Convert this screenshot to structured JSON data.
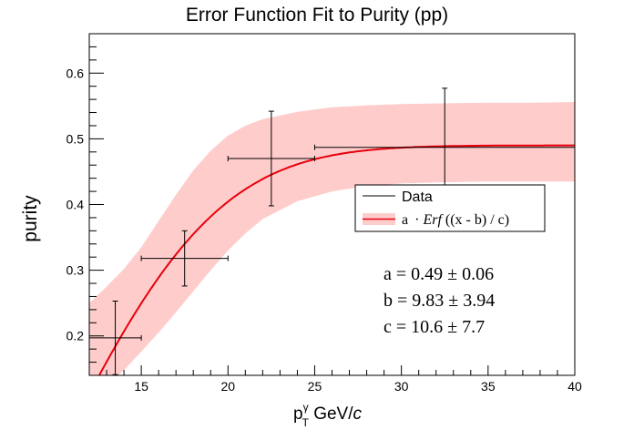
{
  "chart_data": {
    "type": "scatter",
    "title": "Error Function Fit to Purity (pp)",
    "xlabel_parts": {
      "p": "p",
      "sup": "γ",
      "sub": "T",
      "unit": " GeV/",
      "c": "c"
    },
    "ylabel": "purity",
    "xlim": [
      12,
      40
    ],
    "ylim": [
      0.14,
      0.66
    ],
    "x_ticks": [
      15,
      20,
      25,
      30,
      35,
      40
    ],
    "y_ticks": [
      0.2,
      0.3,
      0.4,
      0.5,
      0.6
    ],
    "x_minor_step": 1,
    "y_minor_step": 0.02,
    "series": [
      {
        "name": "Data",
        "points": [
          {
            "x": 13.5,
            "y": 0.197,
            "xerr": 1.5,
            "yerr": 0.056
          },
          {
            "x": 17.5,
            "y": 0.318,
            "xerr": 2.5,
            "yerr": 0.042
          },
          {
            "x": 22.5,
            "y": 0.47,
            "xerr": 2.5,
            "yerr": 0.072
          },
          {
            "x": 32.5,
            "y": 0.487,
            "xerr": 7.5,
            "yerr": 0.09
          }
        ],
        "color": "#000000"
      }
    ],
    "fit": {
      "legend_label_parts": {
        "a": "a ",
        "dot": "·",
        "erf": "Erf",
        "rest": " ((x - b) / c)"
      },
      "a": 0.49,
      "b": 9.83,
      "c": 10.6,
      "line_color": "#e8000b",
      "band_color": "#ffcccc",
      "band_upper": [
        [
          12.0,
          0.25
        ],
        [
          13.0,
          0.275
        ],
        [
          14.0,
          0.302
        ],
        [
          15.0,
          0.335
        ],
        [
          16.0,
          0.375
        ],
        [
          17.0,
          0.415
        ],
        [
          18.0,
          0.452
        ],
        [
          19.0,
          0.482
        ],
        [
          20.0,
          0.505
        ],
        [
          21.0,
          0.52
        ],
        [
          22.0,
          0.53
        ],
        [
          24.0,
          0.541
        ],
        [
          26.0,
          0.548
        ],
        [
          28.0,
          0.551
        ],
        [
          30.0,
          0.553
        ],
        [
          32.5,
          0.554
        ],
        [
          35.0,
          0.555
        ],
        [
          37.5,
          0.555
        ],
        [
          40.0,
          0.556
        ]
      ],
      "band_lower": [
        [
          12.0,
          0.1
        ],
        [
          13.0,
          0.124
        ],
        [
          14.0,
          0.148
        ],
        [
          15.0,
          0.176
        ],
        [
          16.0,
          0.205
        ],
        [
          17.0,
          0.236
        ],
        [
          18.0,
          0.268
        ],
        [
          19.0,
          0.3
        ],
        [
          20.0,
          0.33
        ],
        [
          21.0,
          0.356
        ],
        [
          22.0,
          0.378
        ],
        [
          24.0,
          0.405
        ],
        [
          26.0,
          0.42
        ],
        [
          28.0,
          0.428
        ],
        [
          30.0,
          0.432
        ],
        [
          32.5,
          0.434
        ],
        [
          35.0,
          0.435
        ],
        [
          37.5,
          0.435
        ],
        [
          40.0,
          0.435
        ]
      ]
    },
    "fit_results": [
      {
        "name": "a",
        "text": "a = 0.49 ± 0.06"
      },
      {
        "name": "b",
        "text": "b = 9.83 ± 3.94"
      },
      {
        "name": "c",
        "text": "c = 10.6 ± 7.7"
      }
    ],
    "legend_placement": "center-right",
    "grid": false
  }
}
